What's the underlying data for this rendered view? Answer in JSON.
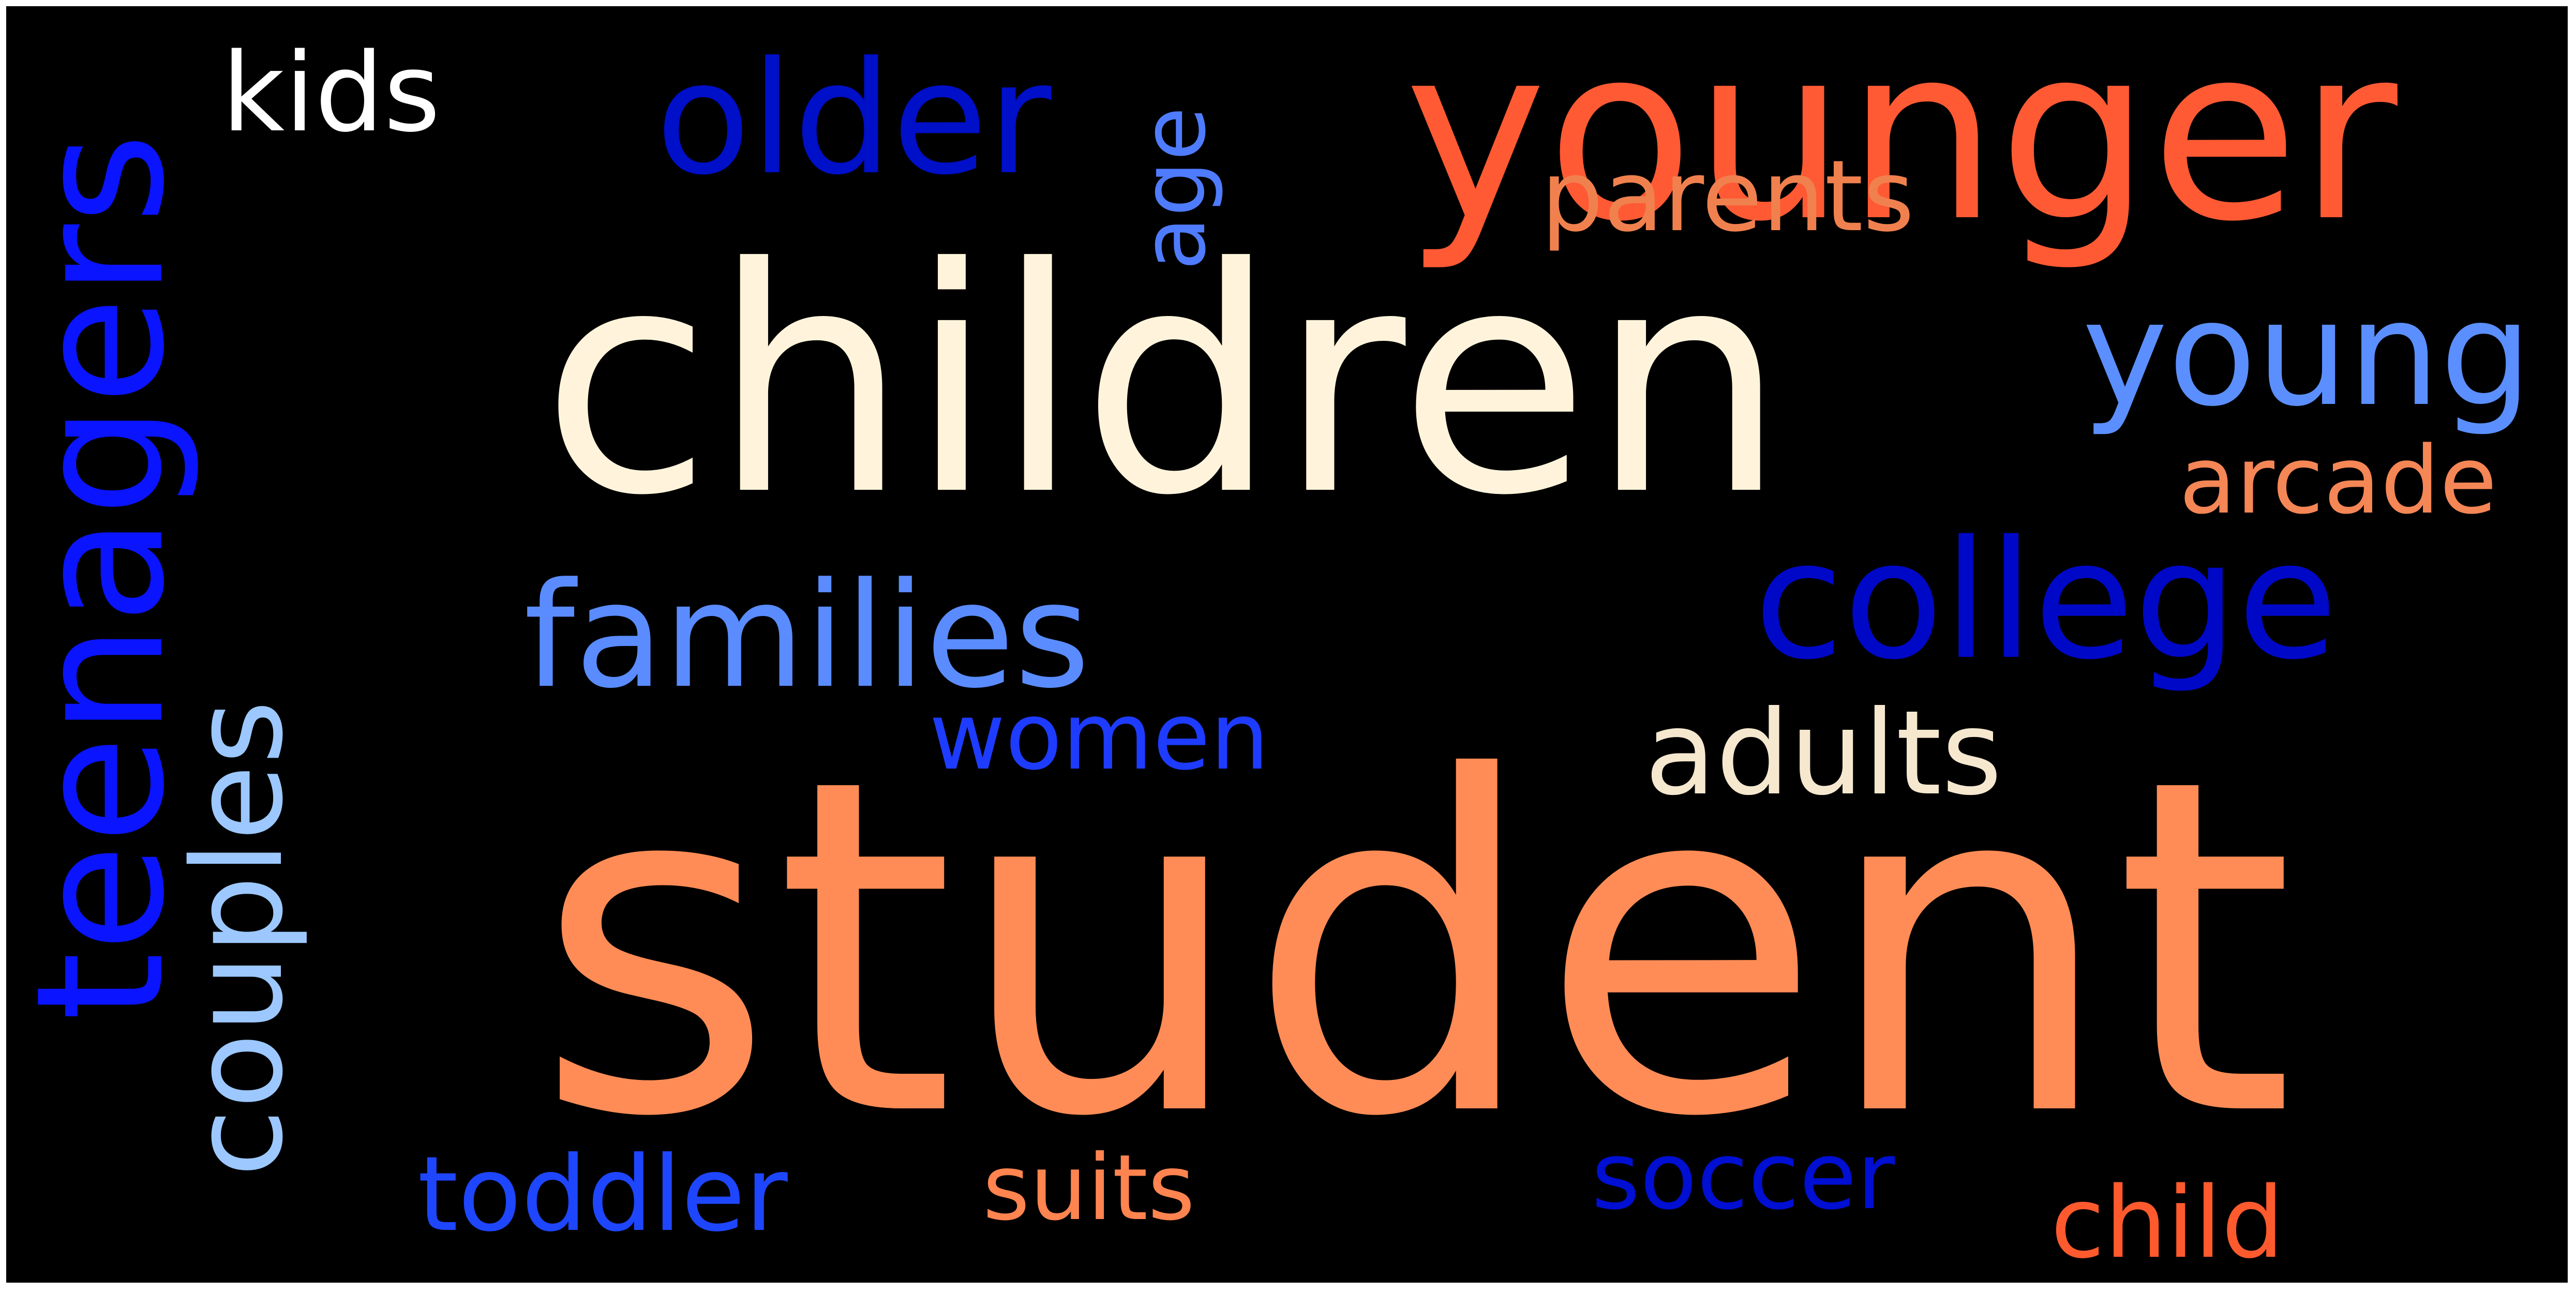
{
  "background": "#000000",
  "words": [
    {
      "id": "student",
      "text": "student",
      "color": "#ff8c56"
    },
    {
      "id": "children",
      "text": "children",
      "color": "#fff4db"
    },
    {
      "id": "younger",
      "text": "younger",
      "color": "#ff5a34"
    },
    {
      "id": "families",
      "text": "families",
      "color": "#5a8cff"
    },
    {
      "id": "teenagers",
      "text": "teenagers",
      "color": "#0a14ff"
    },
    {
      "id": "college",
      "text": "college",
      "color": "#0008c8"
    },
    {
      "id": "older",
      "text": "older",
      "color": "#000fc8"
    },
    {
      "id": "young",
      "text": "young",
      "color": "#5b8fff"
    },
    {
      "id": "adults",
      "text": "adults",
      "color": "#f5e8cf"
    },
    {
      "id": "couples",
      "text": "couples",
      "color": "#9cc8ff"
    },
    {
      "id": "kids",
      "text": "kids",
      "color": "#ffffff"
    },
    {
      "id": "parents",
      "text": "parents",
      "color": "#f0814f"
    },
    {
      "id": "arcade",
      "text": "arcade",
      "color": "#f58656"
    },
    {
      "id": "women",
      "text": "women",
      "color": "#1e3cff"
    },
    {
      "id": "toddler",
      "text": "toddler",
      "color": "#1e46ff"
    },
    {
      "id": "suits",
      "text": "suits",
      "color": "#ff8450"
    },
    {
      "id": "soccer",
      "text": "soccer",
      "color": "#000fd2"
    },
    {
      "id": "child",
      "text": "child",
      "color": "#ff5a2e"
    },
    {
      "id": "age",
      "text": "age",
      "color": "#4f7cff"
    }
  ]
}
